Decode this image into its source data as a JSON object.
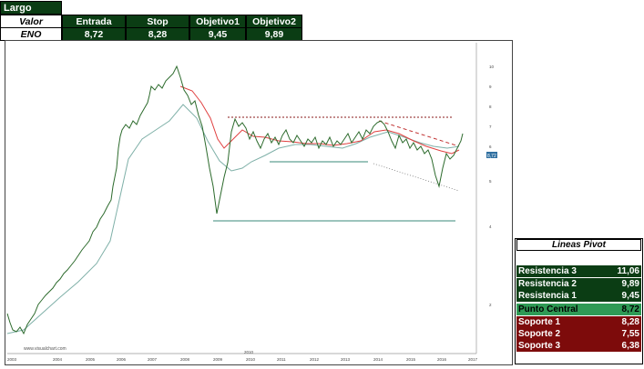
{
  "header": {
    "title": "Largo",
    "columns": [
      "Valor",
      "Entrada",
      "Stop",
      "Objetivo1",
      "Objetivo2"
    ],
    "values": [
      "ENO",
      "8,72",
      "8,28",
      "9,45",
      "9,89"
    ]
  },
  "chart": {
    "watermark": "www.visualchart.com",
    "year_labels": [
      "2003",
      "2004",
      "2005",
      "2006",
      "2007",
      "2008",
      "2009",
      "2010",
      "2011",
      "2012",
      "2013",
      "2014",
      "2015",
      "2016",
      "2017"
    ],
    "period_label": "2010",
    "price_labels": [
      "10",
      "9",
      "8",
      "7",
      "6",
      "5",
      "4",
      "2"
    ],
    "last_price": "8,72"
  },
  "pivot": {
    "title": "Lineas Pivot",
    "rows": [
      {
        "label": "Resistencia 3",
        "value": "11,06",
        "kind": "res"
      },
      {
        "label": "Resistencia 2",
        "value": "9,89",
        "kind": "res"
      },
      {
        "label": "Resistencia 1",
        "value": "9,45",
        "kind": "res"
      },
      {
        "label": "Punto Central",
        "value": "8,72",
        "kind": "mid"
      },
      {
        "label": "Soporte 1",
        "value": "8,28",
        "kind": "sup"
      },
      {
        "label": "Soporte 2",
        "value": "7,55",
        "kind": "sup"
      },
      {
        "label": "Soporte 3",
        "value": "6,38",
        "kind": "sup"
      }
    ]
  },
  "colors": {
    "header_green": "#0b3d14",
    "central_green": "#2f9a55",
    "support_red": "#7d0b0b",
    "price_line": "#2d6b2d",
    "ma_red": "#e04040",
    "ma_blue": "#7fb0a8"
  }
}
